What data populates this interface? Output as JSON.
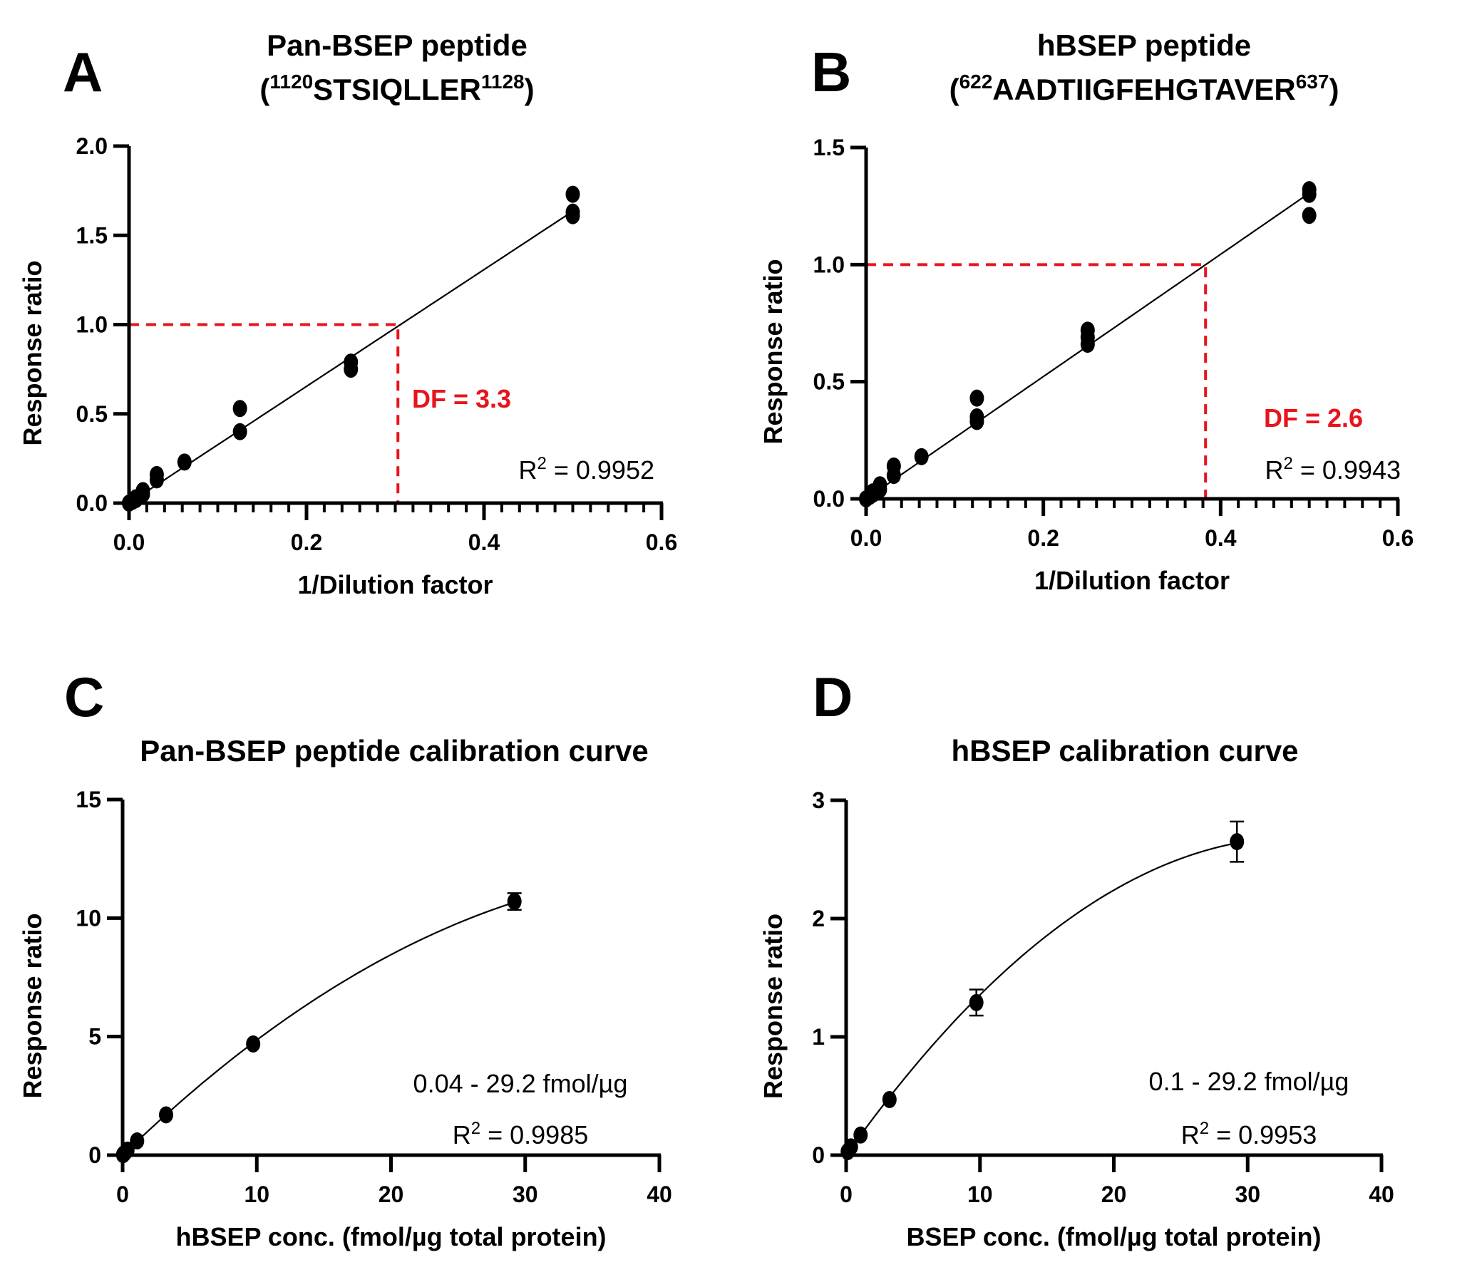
{
  "colors": {
    "ink": "#000000",
    "accent_red": "#E8141B",
    "background": "#FFFFFF"
  },
  "panels": {
    "A": {
      "letter": "A",
      "title_line1": "Pan-BSEP peptide",
      "title_open": "(",
      "title_sup_start": "1120",
      "title_seq": "STSIQLLER",
      "title_sup_end": "1128",
      "title_close": ")",
      "df_text": "DF = 3.3",
      "r2_prefix": "R",
      "r2_sup": "2",
      "r2_value": " = 0.9952"
    },
    "B": {
      "letter": "B",
      "title_line1": "hBSEP peptide",
      "title_open": "(",
      "title_sup_start": "622",
      "title_seq": "AADTIIGFEHGTAVER",
      "title_sup_end": "637",
      "title_close": ")",
      "df_text": "DF = 2.6",
      "r2_prefix": "R",
      "r2_sup": "2",
      "r2_value": " = 0.9943"
    },
    "C": {
      "letter": "C",
      "title": "Pan-BSEP peptide calibration curve",
      "range_text": "0.04 - 29.2 fmol/µg",
      "r2_prefix": "R",
      "r2_sup": "2",
      "r2_value": " = 0.9985"
    },
    "D": {
      "letter": "D",
      "title": "hBSEP calibration curve",
      "range_text": "0.1 - 29.2 fmol/µg",
      "r2_prefix": "R",
      "r2_sup": "2",
      "r2_value": " = 0.9953"
    }
  },
  "chart_data": [
    {
      "id": "A",
      "type": "scatter",
      "title": "Pan-BSEP peptide (1120STSIQLLER1128)",
      "xlabel": "1/Dilution factor",
      "ylabel": "Response ratio",
      "xlim": [
        0,
        0.6
      ],
      "ylim": [
        0,
        2.0
      ],
      "xticks": [
        0.0,
        0.2,
        0.4,
        0.6
      ],
      "xtick_labels": [
        "0.0",
        "0.2",
        "0.4",
        "0.6"
      ],
      "x_minor_step": 0.02,
      "yticks": [
        0.0,
        0.5,
        1.0,
        1.5,
        2.0
      ],
      "ytick_labels": [
        "0.0",
        "0.5",
        "1.0",
        "1.5",
        "2.0"
      ],
      "grid": false,
      "points": [
        [
          0.5,
          1.73
        ],
        [
          0.5,
          1.63
        ],
        [
          0.5,
          1.61
        ],
        [
          0.25,
          0.79
        ],
        [
          0.25,
          0.75
        ],
        [
          0.125,
          0.53
        ],
        [
          0.125,
          0.4
        ],
        [
          0.0625,
          0.23
        ],
        [
          0.03125,
          0.16
        ],
        [
          0.03125,
          0.13
        ],
        [
          0.015625,
          0.07
        ],
        [
          0.015625,
          0.05
        ],
        [
          0.0078125,
          0.03
        ],
        [
          0.0078125,
          0.02
        ],
        [
          0.0039,
          0.01
        ],
        [
          0.0,
          0.0
        ]
      ],
      "fit": {
        "type": "linear",
        "slope": 3.27,
        "intercept": 0.0,
        "x_range": [
          0,
          0.5
        ],
        "r2": 0.9952
      },
      "reference": {
        "y": 1.0,
        "x": 0.303,
        "label": "DF = 3.3",
        "color": "#E8141B"
      },
      "annotations": [
        "DF = 3.3",
        "R2 = 0.9952"
      ]
    },
    {
      "id": "B",
      "type": "scatter",
      "title": "hBSEP peptide (622AADTIIGFEHGTAVER637)",
      "xlabel": "1/Dilution factor",
      "ylabel": "Response ratio",
      "xlim": [
        0,
        0.6
      ],
      "ylim": [
        0,
        1.5
      ],
      "xticks": [
        0.0,
        0.2,
        0.4,
        0.6
      ],
      "xtick_labels": [
        "0.0",
        "0.2",
        "0.4",
        "0.6"
      ],
      "x_minor_step": 0.02,
      "yticks": [
        0.0,
        0.5,
        1.0,
        1.5
      ],
      "ytick_labels": [
        "0.0",
        "0.5",
        "1.0",
        "1.5"
      ],
      "grid": false,
      "points": [
        [
          0.5,
          1.32
        ],
        [
          0.5,
          1.3
        ],
        [
          0.5,
          1.21
        ],
        [
          0.25,
          0.72
        ],
        [
          0.25,
          0.69
        ],
        [
          0.25,
          0.66
        ],
        [
          0.125,
          0.43
        ],
        [
          0.125,
          0.35
        ],
        [
          0.125,
          0.33
        ],
        [
          0.0625,
          0.18
        ],
        [
          0.03125,
          0.14
        ],
        [
          0.03125,
          0.1
        ],
        [
          0.015625,
          0.06
        ],
        [
          0.015625,
          0.04
        ],
        [
          0.0078125,
          0.03
        ],
        [
          0.0078125,
          0.02
        ],
        [
          0.0039,
          0.01
        ],
        [
          0.0,
          0.0
        ]
      ],
      "fit": {
        "type": "linear",
        "slope": 2.61,
        "intercept": 0.0,
        "x_range": [
          0,
          0.5
        ],
        "r2": 0.9943
      },
      "reference": {
        "y": 1.0,
        "x": 0.383,
        "label": "DF = 2.6",
        "color": "#E8141B"
      },
      "annotations": [
        "DF = 2.6",
        "R2 = 0.9943"
      ]
    },
    {
      "id": "C",
      "type": "scatter",
      "title": "Pan-BSEP peptide calibration curve",
      "xlabel": "hBSEP conc. (fmol/µg total protein)",
      "ylabel": "Response ratio",
      "xlim": [
        0,
        40
      ],
      "ylim": [
        0,
        15
      ],
      "xticks": [
        0,
        10,
        20,
        30,
        40
      ],
      "xtick_labels": [
        "0",
        "10",
        "20",
        "30",
        "40"
      ],
      "yticks": [
        0,
        5,
        10,
        15
      ],
      "ytick_labels": [
        "0",
        "5",
        "10",
        "15"
      ],
      "grid": false,
      "points": [
        {
          "x": 0.04,
          "y": 0.02,
          "err": 0
        },
        {
          "x": 0.12,
          "y": 0.07,
          "err": 0
        },
        {
          "x": 0.36,
          "y": 0.21,
          "err": 0
        },
        {
          "x": 1.08,
          "y": 0.6,
          "err": 0
        },
        {
          "x": 3.24,
          "y": 1.7,
          "err": 0
        },
        {
          "x": 9.73,
          "y": 4.69,
          "err": 0
        },
        {
          "x": 29.2,
          "y": 10.7,
          "err": 0.35
        }
      ],
      "fit": {
        "type": "quadratic",
        "a": -0.00626,
        "b": 0.548,
        "c": 0.0,
        "x_range": [
          0,
          29.2
        ],
        "r2": 0.9985
      },
      "annotations": [
        "0.04 - 29.2 fmol/µg",
        "R2 = 0.9985"
      ]
    },
    {
      "id": "D",
      "type": "scatter",
      "title": "hBSEP calibration curve",
      "xlabel": "BSEP conc. (fmol/µg total protein)",
      "ylabel": "Response ratio",
      "xlim": [
        0,
        40
      ],
      "ylim": [
        0,
        3
      ],
      "xticks": [
        0,
        10,
        20,
        30,
        40
      ],
      "xtick_labels": [
        "0",
        "10",
        "20",
        "30",
        "40"
      ],
      "yticks": [
        0,
        1,
        2,
        3
      ],
      "ytick_labels": [
        "0",
        "1",
        "2",
        "3"
      ],
      "grid": false,
      "points": [
        {
          "x": 0.12,
          "y": 0.03,
          "err": 0
        },
        {
          "x": 0.36,
          "y": 0.07,
          "err": 0
        },
        {
          "x": 1.08,
          "y": 0.17,
          "err": 0
        },
        {
          "x": 3.24,
          "y": 0.47,
          "err": 0
        },
        {
          "x": 9.73,
          "y": 1.29,
          "err": 0.11
        },
        {
          "x": 29.2,
          "y": 2.65,
          "err": 0.17
        }
      ],
      "fit": {
        "type": "quadratic",
        "a": -0.00235,
        "b": 0.159,
        "c": 0.0,
        "x_range": [
          0,
          29.2
        ],
        "r2": 0.9953
      },
      "annotations": [
        "0.1 - 29.2 fmol/µg",
        "R2 = 0.9953"
      ]
    }
  ]
}
